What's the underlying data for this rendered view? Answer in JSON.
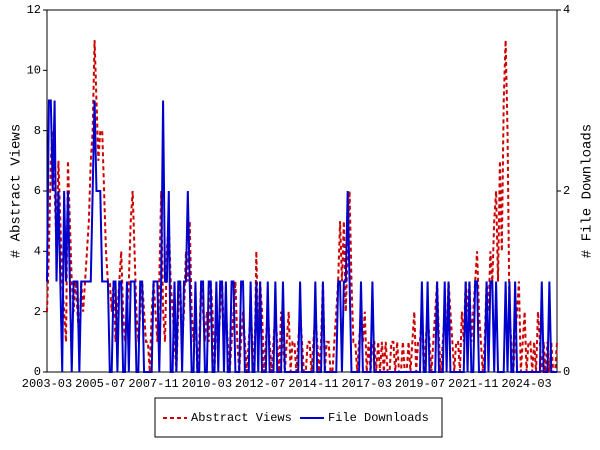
{
  "chart_data": {
    "type": "line",
    "y_label": "# Abstract Views",
    "y2_label": "# File Downloads",
    "categories": [
      "2003-03",
      "2003-04",
      "2003-05",
      "2003-06",
      "2003-07",
      "2003-08",
      "2003-09",
      "2003-10",
      "2003-11",
      "2003-12",
      "2004-01",
      "2004-02",
      "2004-03",
      "2004-04",
      "2004-05",
      "2004-06",
      "2004-07",
      "2004-08",
      "2004-09",
      "2004-10",
      "2004-11",
      "2004-12",
      "2005-01",
      "2005-02",
      "2005-03",
      "2005-04",
      "2005-05",
      "2005-06",
      "2005-07",
      "2005-08",
      "2005-09",
      "2005-10",
      "2005-11",
      "2005-12",
      "2006-01",
      "2006-02",
      "2006-03",
      "2006-04",
      "2006-05",
      "2006-06",
      "2006-07",
      "2006-08",
      "2006-09",
      "2006-10",
      "2006-11",
      "2006-12",
      "2007-01",
      "2007-02",
      "2007-03",
      "2007-04",
      "2007-05",
      "2007-06",
      "2007-07",
      "2007-08",
      "2007-09",
      "2007-10",
      "2007-11",
      "2007-12",
      "2008-01",
      "2008-02",
      "2008-03",
      "2008-04",
      "2008-05",
      "2008-06",
      "2008-07",
      "2008-08",
      "2008-09",
      "2008-10",
      "2008-11",
      "2008-12",
      "2009-01",
      "2009-02",
      "2009-03",
      "2009-04",
      "2009-05",
      "2009-06",
      "2009-07",
      "2009-08",
      "2009-09",
      "2009-10",
      "2009-11",
      "2009-12",
      "2010-01",
      "2010-02",
      "2010-03",
      "2010-04",
      "2010-05",
      "2010-06",
      "2010-07",
      "2010-08",
      "2010-09",
      "2010-10",
      "2010-11",
      "2010-12",
      "2011-01",
      "2011-02",
      "2011-03",
      "2011-04",
      "2011-05",
      "2011-06",
      "2011-07",
      "2011-08",
      "2011-09",
      "2011-10",
      "2011-11",
      "2011-12",
      "2012-01",
      "2012-02",
      "2012-03",
      "2012-04",
      "2012-05",
      "2012-06",
      "2012-07",
      "2012-08",
      "2012-09",
      "2012-10",
      "2012-11",
      "2012-12",
      "2013-01",
      "2013-02",
      "2013-03",
      "2013-04",
      "2013-05",
      "2013-06",
      "2013-07",
      "2013-08",
      "2013-09",
      "2013-10",
      "2013-11",
      "2013-12",
      "2014-01",
      "2014-02",
      "2014-03",
      "2014-04",
      "2014-05",
      "2014-06",
      "2014-07",
      "2014-08",
      "2014-09",
      "2014-10",
      "2014-11",
      "2014-12",
      "2015-01",
      "2015-02",
      "2015-03",
      "2015-04",
      "2015-05",
      "2015-06",
      "2015-07",
      "2015-08",
      "2015-09",
      "2015-10",
      "2015-11",
      "2015-12",
      "2016-01",
      "2016-02",
      "2016-03",
      "2016-04",
      "2016-05",
      "2016-06",
      "2016-07",
      "2016-08",
      "2016-09",
      "2016-10",
      "2016-11",
      "2016-12",
      "2017-01",
      "2017-02",
      "2017-03",
      "2017-04",
      "2017-05",
      "2017-06",
      "2017-07",
      "2017-08",
      "2017-09",
      "2017-10",
      "2017-11",
      "2017-12",
      "2018-01",
      "2018-02",
      "2018-03",
      "2018-04",
      "2018-05",
      "2018-06",
      "2018-07",
      "2018-08",
      "2018-09",
      "2018-10",
      "2018-11",
      "2018-12",
      "2019-01",
      "2019-02",
      "2019-03",
      "2019-04",
      "2019-05",
      "2019-06",
      "2019-07",
      "2019-08",
      "2019-09",
      "2019-10",
      "2019-11",
      "2019-12",
      "2020-01",
      "2020-02",
      "2020-03",
      "2020-04",
      "2020-05",
      "2020-06",
      "2020-07",
      "2020-08",
      "2020-09",
      "2020-10",
      "2020-11",
      "2020-12",
      "2021-01",
      "2021-02",
      "2021-03",
      "2021-04",
      "2021-05",
      "2021-06",
      "2021-07",
      "2021-08",
      "2021-09",
      "2021-10",
      "2021-11",
      "2021-12",
      "2022-01",
      "2022-02",
      "2022-03",
      "2022-04",
      "2022-05",
      "2022-06",
      "2022-07",
      "2022-08",
      "2022-09",
      "2022-10",
      "2022-11",
      "2022-12",
      "2023-01",
      "2023-02",
      "2023-03",
      "2023-04",
      "2023-05",
      "2023-06",
      "2023-07",
      "2023-08",
      "2023-09",
      "2023-10",
      "2023-11",
      "2023-12",
      "2024-01",
      "2024-02",
      "2024-03",
      "2024-04",
      "2024-05",
      "2024-06",
      "2024-07",
      "2024-08",
      "2024-09",
      "2024-10",
      "2024-11",
      "2024-12",
      "2025-01",
      "2025-02",
      "2025-03",
      "2025-04",
      "2025-05",
      "2025-06",
      "2025-07"
    ],
    "series": [
      {
        "name": "Abstract Views",
        "color": "#cc0000",
        "dashed": true,
        "values": [
          2,
          4,
          7,
          8,
          6,
          4,
          7,
          5,
          3,
          2,
          1,
          7,
          5,
          3,
          2,
          3,
          2,
          1,
          3,
          2,
          3,
          4,
          5,
          7,
          8,
          11,
          9,
          7,
          8,
          8,
          6,
          4,
          3,
          3,
          2,
          3,
          1,
          2,
          3,
          4,
          2,
          1,
          2,
          3,
          5,
          6,
          4,
          2,
          1,
          2,
          3,
          2,
          1,
          1,
          0,
          2,
          3,
          2,
          1,
          3,
          6,
          2,
          1,
          4,
          5,
          3,
          2,
          1,
          0,
          2,
          3,
          1,
          2,
          4,
          3,
          5,
          2,
          1,
          2,
          0,
          1,
          3,
          2,
          1,
          2,
          1,
          3,
          2,
          0,
          2,
          1,
          2,
          3,
          1,
          2,
          1,
          0,
          1,
          2,
          3,
          1,
          0,
          1,
          2,
          1,
          0,
          1,
          2,
          1,
          0,
          4,
          1,
          3,
          2,
          0,
          1,
          2,
          1,
          0,
          1,
          2,
          1,
          0,
          2,
          1,
          0,
          1,
          2,
          0,
          1,
          1,
          0,
          1,
          2,
          1,
          0,
          0,
          1,
          1,
          0,
          1,
          2,
          1,
          0,
          1,
          3,
          0,
          1,
          1,
          0,
          0,
          1,
          2,
          3,
          5,
          3,
          5,
          2,
          4,
          6,
          3,
          1,
          1,
          0,
          1,
          2,
          1,
          2,
          0,
          1,
          0,
          1,
          1,
          0,
          1,
          0,
          1,
          0,
          1,
          0,
          0,
          1,
          1,
          0,
          1,
          0,
          0,
          1,
          0,
          0,
          1,
          0,
          1,
          2,
          0,
          1,
          1,
          2,
          0,
          1,
          2,
          1,
          0,
          1,
          2,
          3,
          1,
          0,
          1,
          2,
          1,
          3,
          2,
          1,
          0,
          1,
          1,
          0,
          2,
          1,
          3,
          2,
          3,
          1,
          2,
          3,
          4,
          2,
          1,
          0,
          1,
          3,
          2,
          4,
          3,
          5,
          6,
          3,
          7,
          4,
          9,
          11,
          8,
          2,
          1,
          0,
          1,
          2,
          3,
          0,
          1,
          2,
          0,
          1,
          1,
          0,
          1,
          0,
          2,
          1,
          0,
          1,
          0,
          1,
          0,
          1,
          0,
          0,
          1
        ]
      },
      {
        "name": "File Downloads",
        "color": "#0000cc",
        "axis": "y2",
        "values": [
          1,
          3,
          3,
          2,
          3,
          1,
          2,
          1,
          0,
          2,
          1,
          2,
          1,
          0,
          1,
          1,
          1,
          0,
          1,
          1,
          1,
          1,
          1,
          1,
          2,
          3,
          2,
          2,
          2,
          1,
          1,
          1,
          1,
          0,
          0,
          1,
          1,
          0,
          1,
          1,
          0,
          0,
          1,
          0,
          1,
          1,
          1,
          0,
          0,
          1,
          1,
          0,
          0,
          0,
          0,
          0,
          1,
          1,
          1,
          0,
          1,
          3,
          1,
          1,
          2,
          0,
          0,
          1,
          0,
          1,
          1,
          0,
          1,
          1,
          2,
          1,
          0,
          0,
          1,
          0,
          0,
          1,
          1,
          0,
          0,
          1,
          1,
          0,
          0,
          1,
          0,
          1,
          1,
          0,
          1,
          0,
          0,
          1,
          1,
          0,
          0,
          0,
          1,
          1,
          0,
          0,
          0,
          1,
          0,
          0,
          1,
          0,
          1,
          0,
          0,
          0,
          1,
          0,
          0,
          0,
          1,
          0,
          0,
          0,
          1,
          0,
          0,
          0,
          0,
          0,
          0,
          0,
          0,
          1,
          0,
          0,
          0,
          0,
          0,
          0,
          0,
          1,
          0,
          0,
          0,
          1,
          0,
          0,
          0,
          0,
          0,
          0,
          0,
          1,
          1,
          0,
          1,
          1,
          2,
          1,
          0,
          0,
          0,
          0,
          0,
          1,
          0,
          0,
          0,
          0,
          0,
          1,
          0,
          0,
          0,
          0,
          0,
          0,
          0,
          0,
          0,
          0,
          0,
          0,
          0,
          0,
          0,
          0,
          0,
          0,
          0,
          0,
          0,
          0,
          0,
          0,
          0,
          1,
          0,
          0,
          1,
          0,
          0,
          0,
          0,
          1,
          0,
          0,
          0,
          1,
          0,
          1,
          0,
          0,
          0,
          0,
          0,
          0,
          0,
          0,
          1,
          0,
          1,
          0,
          0,
          1,
          1,
          0,
          0,
          0,
          0,
          1,
          0,
          1,
          1,
          0,
          1,
          0,
          0,
          0,
          0,
          1,
          0,
          1,
          0,
          0,
          1,
          0,
          0,
          0,
          0,
          0,
          0,
          0,
          0,
          0,
          0,
          0,
          0,
          0,
          1,
          0,
          0,
          0,
          1,
          0,
          0,
          0,
          0
        ]
      }
    ],
    "ylim": [
      0,
      12
    ],
    "yticks": [
      0,
      2,
      4,
      6,
      8,
      10,
      12
    ],
    "y2lim": [
      0,
      4
    ],
    "y2ticks": [
      0,
      2,
      4
    ]
  }
}
